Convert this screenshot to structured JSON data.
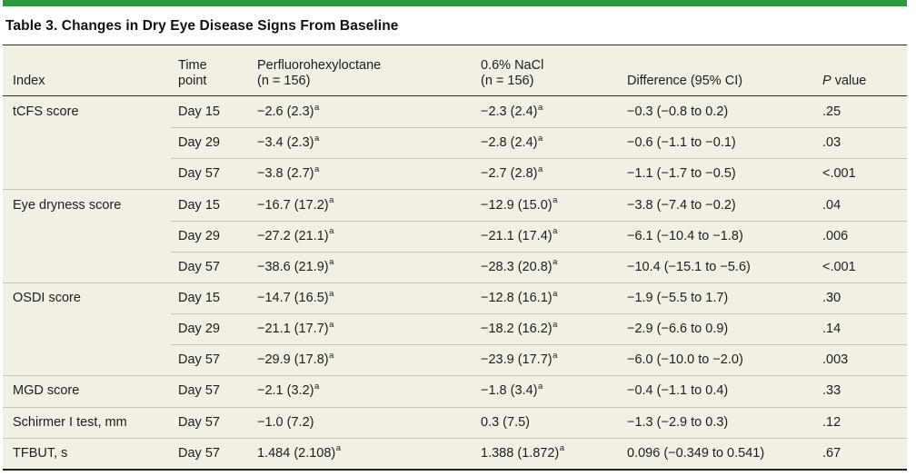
{
  "title": "Table 3. Changes in Dry Eye Disease Signs From Baseline",
  "colors": {
    "accent_green": "#2e9a3e",
    "row_background": "#f2f0e5",
    "row_separator": "#c9c6b9",
    "dark_rule": "#2e2e2e",
    "text": "#1d1d1d"
  },
  "table": {
    "columns": [
      {
        "key": "index",
        "lines": [
          "Index"
        ]
      },
      {
        "key": "time",
        "lines": [
          "Time",
          "point"
        ]
      },
      {
        "key": "f6h8",
        "lines": [
          "Perfluorohexyloctane",
          "(n = 156)"
        ]
      },
      {
        "key": "nacl",
        "lines": [
          "0.6% NaCl",
          "(n = 156)"
        ]
      },
      {
        "key": "diff",
        "lines": [
          "Difference (95% CI)"
        ]
      },
      {
        "key": "p",
        "lines": [
          "P value"
        ],
        "italic_first": true
      }
    ],
    "rows": [
      {
        "sep": "none",
        "cells": {
          "index": "tCFS score",
          "time": "Day 15",
          "f6h8": {
            "v": "−2.6 (2.3)",
            "sup": "a"
          },
          "nacl": {
            "v": "−2.3 (2.4)",
            "sup": "a"
          },
          "diff": "−0.3 (−0.8 to 0.2)",
          "p": ".25"
        }
      },
      {
        "sep": "indent",
        "cells": {
          "index": "",
          "time": "Day 29",
          "f6h8": {
            "v": "−3.4 (2.3)",
            "sup": "a"
          },
          "nacl": {
            "v": "−2.8 (2.4)",
            "sup": "a"
          },
          "diff": "−0.6 (−1.1 to −0.1)",
          "p": ".03"
        }
      },
      {
        "sep": "indent",
        "cells": {
          "index": "",
          "time": "Day 57",
          "f6h8": {
            "v": "−3.8 (2.7)",
            "sup": "a"
          },
          "nacl": {
            "v": "−2.7 (2.8)",
            "sup": "a"
          },
          "diff": "−1.1 (−1.7 to −0.5)",
          "p": "<.001"
        }
      },
      {
        "sep": "full",
        "cells": {
          "index": "Eye dryness score",
          "time": "Day 15",
          "f6h8": {
            "v": "−16.7 (17.2)",
            "sup": "a"
          },
          "nacl": {
            "v": "−12.9 (15.0)",
            "sup": "a"
          },
          "diff": "−3.8 (−7.4 to −0.2)",
          "p": ".04"
        }
      },
      {
        "sep": "indent",
        "cells": {
          "index": "",
          "time": "Day 29",
          "f6h8": {
            "v": "−27.2 (21.1)",
            "sup": "a"
          },
          "nacl": {
            "v": "−21.1 (17.4)",
            "sup": "a"
          },
          "diff": "−6.1 (−10.4 to −1.8)",
          "p": ".006"
        }
      },
      {
        "sep": "indent",
        "cells": {
          "index": "",
          "time": "Day 57",
          "f6h8": {
            "v": "−38.6 (21.9)",
            "sup": "a"
          },
          "nacl": {
            "v": "−28.3 (20.8)",
            "sup": "a"
          },
          "diff": "−10.4 (−15.1 to −5.6)",
          "p": "<.001"
        }
      },
      {
        "sep": "full",
        "cells": {
          "index": "OSDI score",
          "time": "Day 15",
          "f6h8": {
            "v": "−14.7 (16.5)",
            "sup": "a"
          },
          "nacl": {
            "v": "−12.8 (16.1)",
            "sup": "a"
          },
          "diff": "−1.9 (−5.5 to 1.7)",
          "p": ".30"
        }
      },
      {
        "sep": "indent",
        "cells": {
          "index": "",
          "time": "Day 29",
          "f6h8": {
            "v": "−21.1 (17.7)",
            "sup": "a"
          },
          "nacl": {
            "v": "−18.2 (16.2)",
            "sup": "a"
          },
          "diff": "−2.9 (−6.6 to 0.9)",
          "p": ".14"
        }
      },
      {
        "sep": "indent",
        "cells": {
          "index": "",
          "time": "Day 57",
          "f6h8": {
            "v": "−29.9 (17.8)",
            "sup": "a"
          },
          "nacl": {
            "v": "−23.9 (17.7)",
            "sup": "a"
          },
          "diff": "−6.0 (−10.0 to −2.0)",
          "p": ".003"
        }
      },
      {
        "sep": "full",
        "cells": {
          "index": "MGD score",
          "time": "Day 57",
          "f6h8": {
            "v": "−2.1 (3.2)",
            "sup": "a"
          },
          "nacl": {
            "v": "−1.8 (3.4)",
            "sup": "a"
          },
          "diff": "−0.4 (−1.1 to 0.4)",
          "p": ".33"
        }
      },
      {
        "sep": "full",
        "cells": {
          "index": "Schirmer I test, mm",
          "time": "Day 57",
          "f6h8": "−1.0 (7.2)",
          "nacl": "0.3 (7.5)",
          "diff": "−1.3 (−2.9 to 0.3)",
          "p": ".12"
        }
      },
      {
        "sep": "full",
        "cells": {
          "index": "TFBUT, s",
          "time": "Day 57",
          "f6h8": {
            "v": "1.484 (2.108)",
            "sup": "a"
          },
          "nacl": {
            "v": "1.388 (1.872)",
            "sup": "a"
          },
          "diff": "0.096 (−0.349 to 0.541)",
          "p": ".67"
        }
      }
    ]
  }
}
